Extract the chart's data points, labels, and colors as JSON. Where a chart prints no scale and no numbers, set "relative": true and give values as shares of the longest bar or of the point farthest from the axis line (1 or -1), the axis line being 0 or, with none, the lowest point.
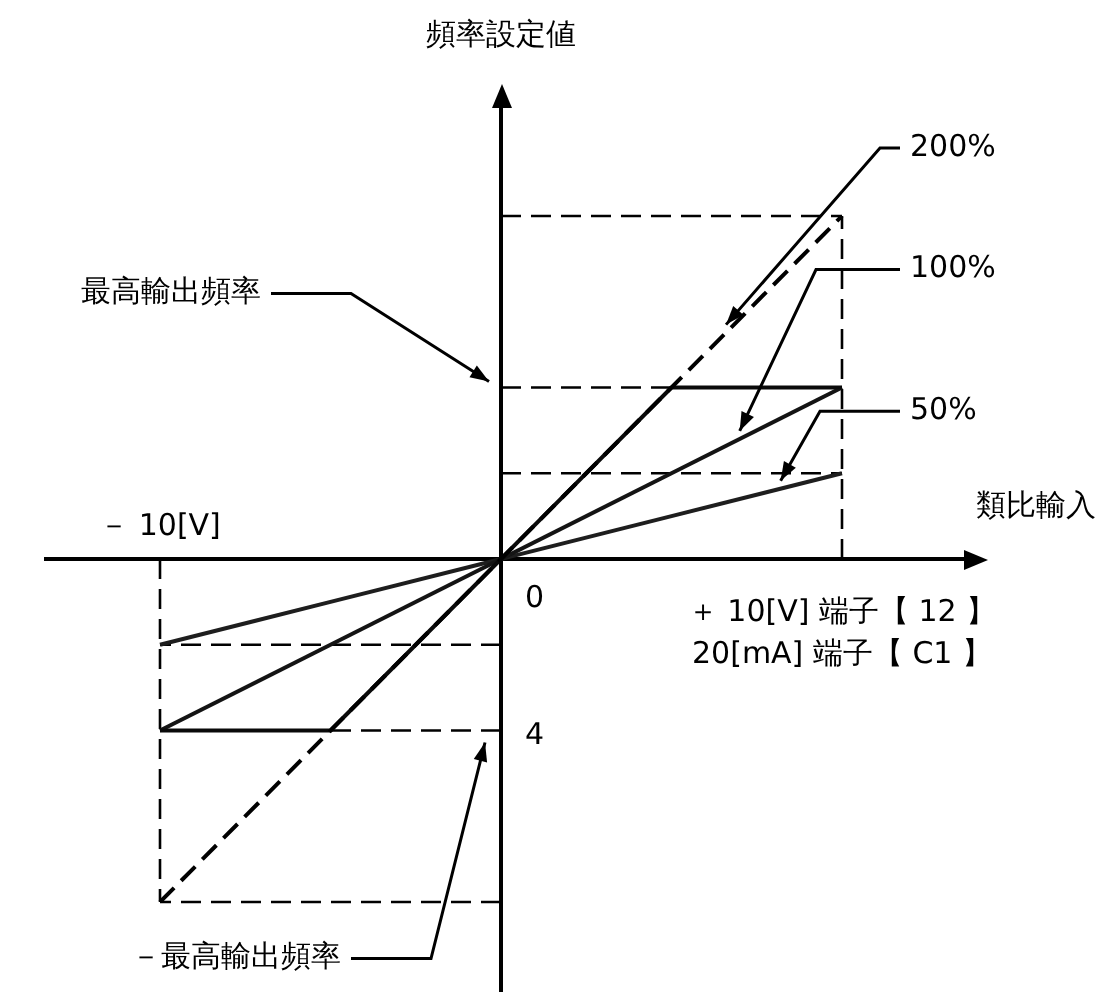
{
  "chart_data": {
    "type": "line",
    "relative": true,
    "xlabel": "類比輸入",
    "categories": [
      "－ 10[V]",
      null,
      null,
      null,
      "＋ 10[V] 端子【 12 】"
    ],
    "series": [
      {
        "name": "200%",
        "color": "#000000",
        "line_style": "dashed",
        "values": [
          -1,
          -0.5,
          0,
          0.5,
          1
        ]
      },
      {
        "color": "#0a0a0a",
        "line_style": "solid",
        "values": [
          -0.5,
          -0.5,
          0,
          0.5,
          0.5
        ]
      },
      {
        "name": "100%",
        "color": "#141414",
        "line_style": "solid",
        "values": [
          -0.5,
          -0.25,
          0,
          0.25,
          0.5
        ]
      },
      {
        "name": "50%",
        "color": "#1e1e1e",
        "line_style": "solid",
        "values": [
          -0.25,
          -0.125,
          0,
          0.125,
          0.25
        ]
      }
    ],
    "ref_lines": [
      {
        "axis": "y",
        "value": 1,
        "color": "#000000",
        "line_style": "dashed"
      },
      {
        "axis": "y",
        "value": 0.5,
        "color": "#000000",
        "line_style": "dashed"
      },
      {
        "axis": "y",
        "value": 0.25,
        "color": "#000000",
        "line_style": "dashed"
      },
      {
        "axis": "y",
        "value": -0.25,
        "color": "#000000",
        "line_style": "dashed"
      },
      {
        "axis": "y",
        "value": -0.5,
        "color": "#000000",
        "line_style": "dashed"
      },
      {
        "axis": "y",
        "value": -1,
        "color": "#000000",
        "line_style": "dashed"
      },
      {
        "axis": "x",
        "value": "＋ 10[V] 端子【 12 】",
        "color": "#000000",
        "line_style": "dashed"
      },
      {
        "axis": "x",
        "value": "－ 10[V]",
        "color": "#000000",
        "line_style": "dashed"
      }
    ],
    "annotations": [
      "頻率設定値",
      "最高輸出頻率",
      "－最高輸出頻率",
      "0",
      "4",
      "20[mA] 端子【 C1 】"
    ],
    "legend": false
  }
}
